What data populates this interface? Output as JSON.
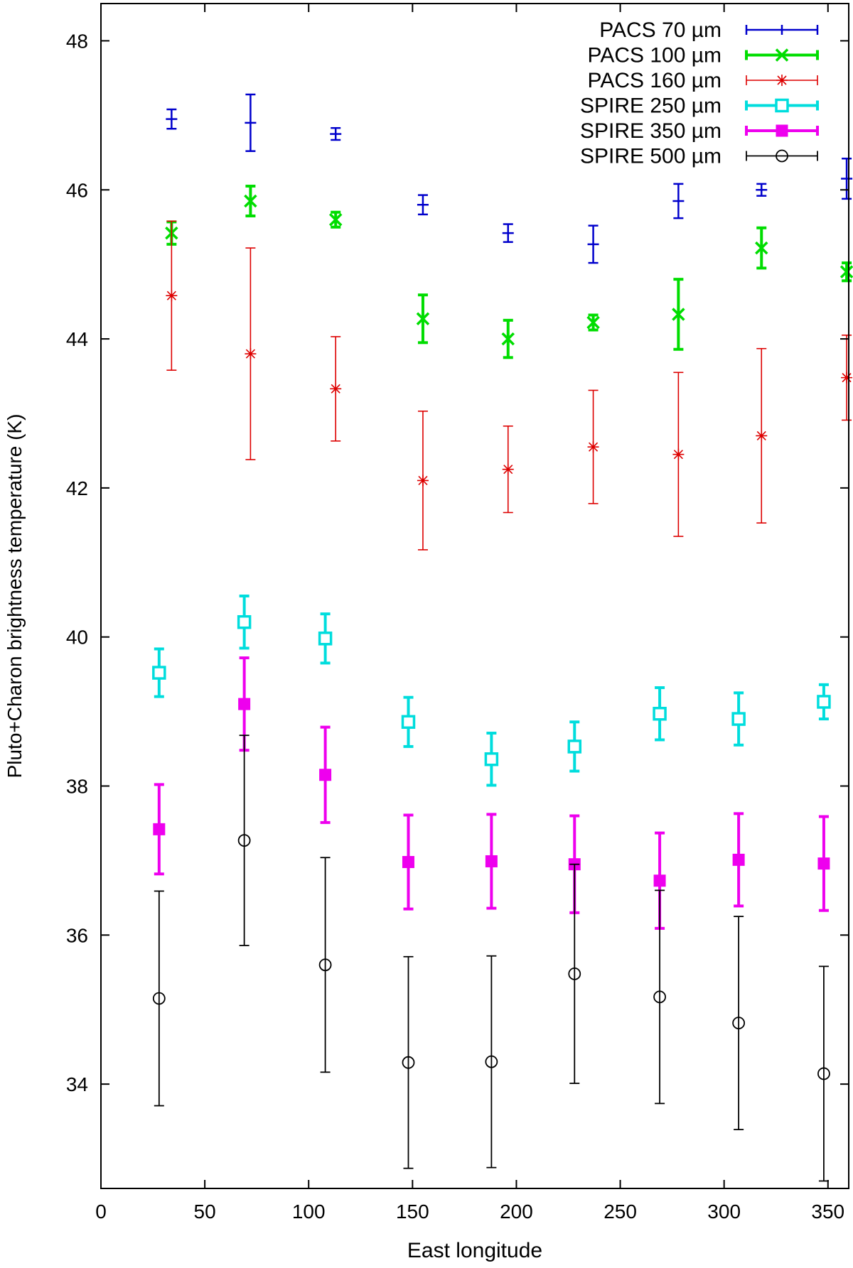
{
  "chart_data": {
    "type": "scatter",
    "title": "",
    "xlabel": "East longitude",
    "ylabel": "Pluto+Charon brightness temperature (K)",
    "xlim": [
      0,
      360
    ],
    "ylim": [
      32.6,
      48.5
    ],
    "xticks": [
      0,
      50,
      100,
      150,
      200,
      250,
      300,
      350
    ],
    "yticks": [
      34,
      36,
      38,
      40,
      42,
      44,
      46,
      48
    ],
    "legend_position": "top-right",
    "series": [
      {
        "name": "PACS 70 µm",
        "color": "#0000cc",
        "marker": "plus",
        "x": [
          34,
          72,
          113,
          155,
          196,
          237,
          278,
          318,
          359
        ],
        "y": [
          46.95,
          46.9,
          46.75,
          45.8,
          45.42,
          45.27,
          45.85,
          46.0,
          46.15
        ],
        "err": [
          0.13,
          0.38,
          0.08,
          0.13,
          0.12,
          0.25,
          0.23,
          0.08,
          0.27
        ]
      },
      {
        "name": "PACS 100 µm",
        "color": "#00dd00",
        "marker": "cross",
        "x": [
          34,
          72,
          113,
          155,
          196,
          237,
          278,
          318,
          359
        ],
        "y": [
          45.42,
          45.85,
          45.6,
          44.27,
          44.0,
          44.22,
          44.33,
          45.22,
          44.9
        ],
        "err": [
          0.15,
          0.2,
          0.1,
          0.32,
          0.25,
          0.1,
          0.47,
          0.27,
          0.12
        ]
      },
      {
        "name": "PACS 160 µm",
        "color": "#dd0000",
        "marker": "star",
        "x": [
          34,
          72,
          113,
          155,
          196,
          237,
          278,
          318,
          359
        ],
        "y": [
          44.58,
          43.8,
          43.33,
          42.1,
          42.25,
          42.55,
          42.45,
          42.7,
          43.48
        ],
        "err": [
          1.0,
          1.42,
          0.7,
          0.93,
          0.58,
          0.76,
          1.1,
          1.17,
          0.57
        ]
      },
      {
        "name": "SPIRE 250 µm",
        "color": "#00dddd",
        "marker": "open-square",
        "x": [
          28,
          69,
          108,
          148,
          188,
          228,
          269,
          307,
          348
        ],
        "y": [
          39.52,
          40.2,
          39.98,
          38.86,
          38.36,
          38.53,
          38.97,
          38.9,
          39.13
        ],
        "err": [
          0.32,
          0.35,
          0.33,
          0.33,
          0.35,
          0.33,
          0.35,
          0.35,
          0.23
        ]
      },
      {
        "name": "SPIRE 350 µm",
        "color": "#ee00ee",
        "marker": "filled-square",
        "x": [
          28,
          69,
          108,
          148,
          188,
          228,
          269,
          307,
          348
        ],
        "y": [
          37.42,
          39.1,
          38.15,
          36.98,
          36.99,
          36.95,
          36.73,
          37.01,
          36.96
        ],
        "err": [
          0.6,
          0.62,
          0.64,
          0.63,
          0.63,
          0.65,
          0.64,
          0.62,
          0.63
        ]
      },
      {
        "name": "SPIRE 500 µm",
        "color": "#000000",
        "marker": "open-circle",
        "x": [
          28,
          69,
          108,
          148,
          188,
          228,
          269,
          307,
          348
        ],
        "y": [
          35.15,
          37.27,
          35.6,
          34.29,
          34.3,
          35.48,
          35.17,
          34.82,
          34.14
        ],
        "err": [
          1.44,
          1.41,
          1.44,
          1.42,
          1.42,
          1.47,
          1.43,
          1.43,
          1.44
        ]
      }
    ]
  }
}
